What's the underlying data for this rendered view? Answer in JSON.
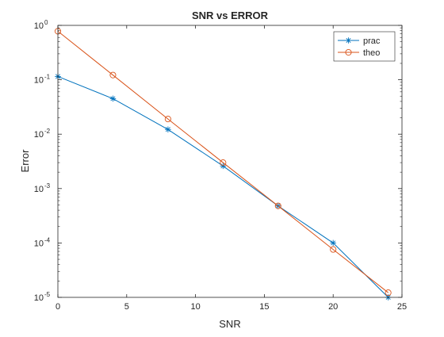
{
  "chart_data": {
    "type": "line",
    "title": "SNR vs ERROR",
    "xlabel": "SNR",
    "ylabel": "Error",
    "xlim": [
      0,
      25
    ],
    "ylim": [
      1e-05,
      1
    ],
    "yscale": "log",
    "xticks": [
      0,
      5,
      10,
      15,
      20,
      25
    ],
    "yticks": [
      {
        "value": 1,
        "base": "10",
        "exp": "0"
      },
      {
        "value": 0.1,
        "base": "10",
        "exp": "-1"
      },
      {
        "value": 0.01,
        "base": "10",
        "exp": "-2"
      },
      {
        "value": 0.001,
        "base": "10",
        "exp": "-3"
      },
      {
        "value": 0.0001,
        "base": "10",
        "exp": "-4"
      },
      {
        "value": 1e-05,
        "base": "10",
        "exp": "-5"
      }
    ],
    "grid": false,
    "legend_position": "top-right",
    "series": [
      {
        "name": "prac",
        "marker": "asterisk",
        "color": "#0072BD",
        "x": [
          0,
          4,
          8,
          12,
          16,
          20,
          24
        ],
        "y": [
          0.115,
          0.045,
          0.0122,
          0.0026,
          0.00048,
          0.0001,
          1e-05
        ]
      },
      {
        "name": "theo",
        "marker": "circle",
        "color": "#D95319",
        "x": [
          0,
          4,
          8,
          12,
          16,
          20,
          24
        ],
        "y": [
          0.78,
          0.122,
          0.019,
          0.003,
          0.00048,
          7.6e-05,
          1.22e-05
        ]
      }
    ]
  }
}
